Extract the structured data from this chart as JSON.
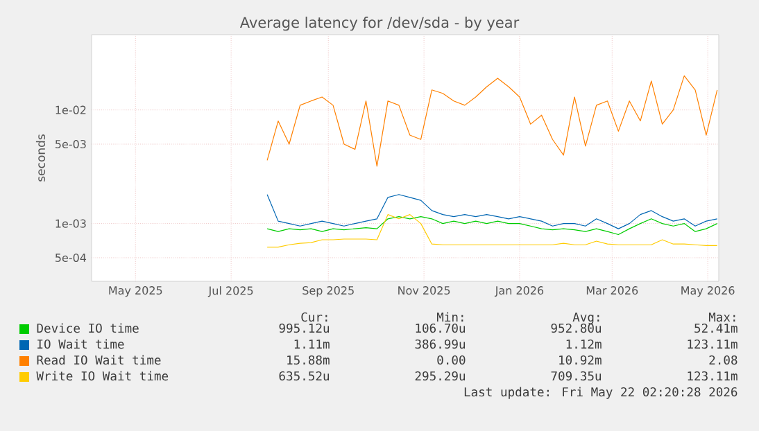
{
  "chart_data": {
    "type": "line",
    "title": "Average latency for /dev/sda - by year",
    "ylabel": "seconds",
    "log": "y",
    "grid": true,
    "legend": "bottom",
    "xlim": [
      "2025-04-17",
      "2026-05-22"
    ],
    "xticks": [
      {
        "value": "2025-05-15",
        "label": "May 2025"
      },
      {
        "value": "2025-07-15",
        "label": "Jul 2025"
      },
      {
        "value": "2025-09-15",
        "label": "Sep 2025"
      },
      {
        "value": "2025-11-15",
        "label": "Nov 2025"
      },
      {
        "value": "2026-01-15",
        "label": "Jan 2026"
      },
      {
        "value": "2026-03-15",
        "label": "Mar 2026"
      },
      {
        "value": "2026-05-15",
        "label": "May 2026"
      }
    ],
    "ylim": [
      0.00031,
      0.046
    ],
    "yticks": [
      {
        "value": 0.0005,
        "label": "5e-04"
      },
      {
        "value": 0.001,
        "label": "1e-03"
      },
      {
        "value": 0.005,
        "label": "5e-03"
      },
      {
        "value": 0.01,
        "label": "1e-02"
      }
    ],
    "x": [
      "2025-08-07",
      "2025-08-14",
      "2025-08-21",
      "2025-08-28",
      "2025-09-04",
      "2025-09-11",
      "2025-09-18",
      "2025-09-25",
      "2025-10-02",
      "2025-10-09",
      "2025-10-16",
      "2025-10-23",
      "2025-10-30",
      "2025-11-06",
      "2025-11-13",
      "2025-11-20",
      "2025-11-27",
      "2025-12-04",
      "2025-12-11",
      "2025-12-18",
      "2025-12-25",
      "2026-01-01",
      "2026-01-08",
      "2026-01-15",
      "2026-01-22",
      "2026-01-29",
      "2026-02-05",
      "2026-02-12",
      "2026-02-19",
      "2026-02-26",
      "2026-03-05",
      "2026-03-12",
      "2026-03-19",
      "2026-03-26",
      "2026-04-02",
      "2026-04-09",
      "2026-04-16",
      "2026-04-23",
      "2026-04-30",
      "2026-05-07",
      "2026-05-14",
      "2026-05-21"
    ],
    "series": [
      {
        "name": "Device IO time",
        "color": "#00cc00",
        "values": [
          0.0009,
          0.00085,
          0.0009,
          0.00088,
          0.0009,
          0.00085,
          0.0009,
          0.00088,
          0.0009,
          0.00092,
          0.0009,
          0.0011,
          0.00115,
          0.0011,
          0.00115,
          0.0011,
          0.001,
          0.00105,
          0.001,
          0.00105,
          0.001,
          0.00105,
          0.001,
          0.001,
          0.00095,
          0.0009,
          0.00088,
          0.0009,
          0.00088,
          0.00085,
          0.0009,
          0.00085,
          0.0008,
          0.0009,
          0.001,
          0.0011,
          0.001,
          0.00095,
          0.001,
          0.00085,
          0.0009,
          0.001
        ]
      },
      {
        "name": "IO Wait time",
        "color": "#0066b3",
        "values": [
          0.0018,
          0.00105,
          0.001,
          0.00095,
          0.001,
          0.00105,
          0.001,
          0.00095,
          0.001,
          0.00105,
          0.0011,
          0.0017,
          0.0018,
          0.0017,
          0.0016,
          0.0013,
          0.0012,
          0.00115,
          0.0012,
          0.00115,
          0.0012,
          0.00115,
          0.0011,
          0.00115,
          0.0011,
          0.00105,
          0.00095,
          0.001,
          0.001,
          0.00095,
          0.0011,
          0.001,
          0.0009,
          0.001,
          0.0012,
          0.0013,
          0.00115,
          0.00105,
          0.0011,
          0.00095,
          0.00105,
          0.0011
        ]
      },
      {
        "name": "Read IO Wait time",
        "color": "#ff8000",
        "values": [
          0.0036,
          0.008,
          0.005,
          0.011,
          0.012,
          0.013,
          0.011,
          0.005,
          0.0045,
          0.012,
          0.0032,
          0.012,
          0.011,
          0.006,
          0.0055,
          0.015,
          0.014,
          0.012,
          0.011,
          0.013,
          0.016,
          0.019,
          0.016,
          0.013,
          0.0075,
          0.009,
          0.0055,
          0.004,
          0.013,
          0.0048,
          0.011,
          0.012,
          0.0065,
          0.012,
          0.008,
          0.018,
          0.0075,
          0.01,
          0.02,
          0.015,
          0.006,
          0.015
        ]
      },
      {
        "name": "Write IO Wait time",
        "color": "#ffcc00",
        "values": [
          0.00062,
          0.00062,
          0.00065,
          0.00067,
          0.00068,
          0.00072,
          0.00072,
          0.00073,
          0.00073,
          0.00073,
          0.00072,
          0.0012,
          0.0011,
          0.0012,
          0.001,
          0.00066,
          0.00065,
          0.00065,
          0.00065,
          0.00065,
          0.00065,
          0.00065,
          0.00065,
          0.00065,
          0.00065,
          0.00065,
          0.00065,
          0.00067,
          0.00065,
          0.00065,
          0.0007,
          0.00066,
          0.00065,
          0.00065,
          0.00065,
          0.00065,
          0.00072,
          0.00066,
          0.00066,
          0.00065,
          0.00064,
          0.00064
        ]
      }
    ],
    "annotations": [
      "Cur:",
      "Min:",
      "Avg:",
      "Max:",
      "995.12u",
      "106.70u",
      "952.80u",
      "52.41m",
      "1.11m",
      "386.99u",
      "1.12m",
      "123.11m",
      "15.88m",
      "0.00",
      "10.92m",
      "2.08",
      "635.52u",
      "295.29u",
      "709.35u",
      "123.11m",
      "Last update: Fri May 22 02:20:28 2026"
    ]
  }
}
